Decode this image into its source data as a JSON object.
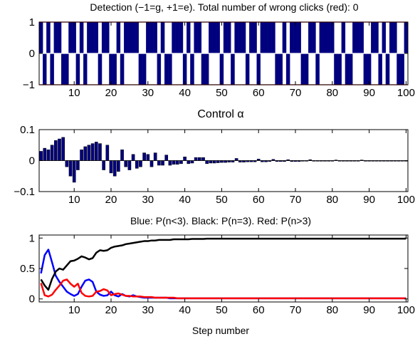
{
  "chart_data": [
    {
      "type": "bar",
      "title": "Detection (−1=g, +1=e). Total number of wrong clicks (red): 0",
      "xlabel": "Control α",
      "ylabel": "",
      "xlim": [
        0.5,
        100.5
      ],
      "ylim": [
        -1,
        1
      ],
      "xticks": [
        "10",
        "20",
        "30",
        "40",
        "50",
        "60",
        "70",
        "80",
        "90",
        "100"
      ],
      "yticks": [
        "−1",
        "0",
        "1"
      ],
      "wrong_click_line_color": "#e00000",
      "bar_color": "#00007f",
      "x": [
        1,
        2,
        3,
        4,
        5,
        6,
        7,
        8,
        9,
        10,
        11,
        12,
        13,
        14,
        15,
        16,
        17,
        18,
        19,
        20,
        21,
        22,
        23,
        24,
        25,
        26,
        27,
        28,
        29,
        30,
        31,
        32,
        33,
        34,
        35,
        36,
        37,
        38,
        39,
        40,
        41,
        42,
        43,
        44,
        45,
        46,
        47,
        48,
        49,
        50,
        51,
        52,
        53,
        54,
        55,
        56,
        57,
        58,
        59,
        60,
        61,
        62,
        63,
        64,
        65,
        66,
        67,
        68,
        69,
        70,
        71,
        72,
        73,
        74,
        75,
        76,
        77,
        78,
        79,
        80,
        81,
        82,
        83,
        84,
        85,
        86,
        87,
        88,
        89,
        90,
        91,
        92,
        93,
        94,
        95,
        96,
        97,
        98,
        99,
        100
      ],
      "values": [
        1,
        -1,
        1,
        -1,
        1,
        1,
        -1,
        -1,
        1,
        1,
        -1,
        1,
        -1,
        1,
        1,
        1,
        -1,
        1,
        1,
        -1,
        -1,
        1,
        -1,
        1,
        1,
        1,
        1,
        -1,
        -1,
        1,
        1,
        1,
        -1,
        1,
        -1,
        -1,
        1,
        1,
        1,
        -1,
        1,
        -1,
        1,
        1,
        -1,
        -1,
        1,
        1,
        1,
        -1,
        1,
        1,
        -1,
        1,
        1,
        1,
        -1,
        1,
        1,
        -1,
        1,
        1,
        1,
        1,
        -1,
        -1,
        1,
        -1,
        1,
        1,
        1,
        -1,
        -1,
        1,
        1,
        -1,
        1,
        1,
        1,
        1,
        -1,
        -1,
        1,
        -1,
        -1,
        1,
        1,
        1,
        -1,
        -1,
        1,
        1,
        -1,
        1,
        -1,
        1,
        1,
        -1,
        -1,
        1
      ]
    },
    {
      "type": "bar",
      "title": "",
      "xlabel": "",
      "ylabel": "",
      "xlim": [
        0.5,
        100.5
      ],
      "ylim": [
        -0.1,
        0.1
      ],
      "xticks": [
        "10",
        "20",
        "30",
        "40",
        "50",
        "60",
        "70",
        "80",
        "90",
        "100"
      ],
      "yticks": [
        "−0.1",
        "0",
        "0.1"
      ],
      "bar_color": "#00007f",
      "x": [
        1,
        2,
        3,
        4,
        5,
        6,
        7,
        8,
        9,
        10,
        11,
        12,
        13,
        14,
        15,
        16,
        17,
        18,
        19,
        20,
        21,
        22,
        23,
        24,
        25,
        26,
        27,
        28,
        29,
        30,
        31,
        32,
        33,
        34,
        35,
        36,
        37,
        38,
        39,
        40,
        41,
        42,
        43,
        44,
        45,
        46,
        47,
        48,
        49,
        50,
        51,
        52,
        53,
        54,
        55,
        56,
        57,
        58,
        59,
        60,
        61,
        62,
        63,
        64,
        65,
        66,
        67,
        68,
        69,
        70,
        71,
        72,
        73,
        74,
        75,
        76,
        77,
        78,
        79,
        80,
        81,
        82,
        83,
        84,
        85,
        86,
        87,
        88,
        89,
        90,
        91,
        92,
        93,
        94,
        95,
        96,
        97,
        98,
        99,
        100
      ],
      "values": [
        0.03,
        0.04,
        0.035,
        0.05,
        0.065,
        0.07,
        0.075,
        -0.02,
        -0.05,
        -0.07,
        -0.03,
        0.035,
        0.045,
        0.05,
        0.055,
        0.06,
        0.055,
        -0.03,
        0.05,
        -0.04,
        -0.05,
        -0.035,
        0.035,
        -0.02,
        -0.03,
        0.02,
        -0.025,
        -0.02,
        0.025,
        0.02,
        -0.02,
        0.025,
        -0.015,
        -0.015,
        0.018,
        -0.015,
        -0.012,
        -0.012,
        -0.01,
        0.012,
        -0.01,
        -0.008,
        0.01,
        0.01,
        0.01,
        -0.01,
        -0.008,
        -0.008,
        -0.007,
        -0.006,
        -0.006,
        -0.005,
        -0.005,
        0.007,
        -0.005,
        -0.005,
        -0.004,
        -0.004,
        -0.004,
        0.005,
        -0.004,
        -0.004,
        -0.003,
        0.004,
        -0.003,
        -0.003,
        -0.003,
        0.003,
        -0.003,
        -0.003,
        -0.003,
        -0.002,
        -0.002,
        0.003,
        -0.002,
        -0.002,
        -0.002,
        -0.002,
        -0.002,
        -0.002,
        0.002,
        -0.002,
        -0.002,
        -0.002,
        -0.002,
        -0.002,
        -0.002,
        0.002,
        -0.002,
        -0.002,
        -0.002,
        -0.002,
        -0.002,
        -0.002,
        -0.002,
        -0.002,
        -0.002,
        -0.002,
        -0.002,
        -0.002
      ]
    },
    {
      "type": "line",
      "title": "Blue: P(n<3).   Black: P(n=3).   Red: P(n>3)",
      "xlabel": "Step number",
      "ylabel": "",
      "xlim": [
        0.5,
        100.5
      ],
      "ylim": [
        -0.05,
        1.05
      ],
      "xticks": [
        "10",
        "20",
        "30",
        "40",
        "50",
        "60",
        "70",
        "80",
        "90",
        "100"
      ],
      "yticks": [
        "0",
        "0.5",
        "1"
      ],
      "x": [
        1,
        2,
        3,
        4,
        5,
        6,
        7,
        8,
        9,
        10,
        11,
        12,
        13,
        14,
        15,
        16,
        17,
        18,
        19,
        20,
        21,
        22,
        23,
        24,
        25,
        26,
        27,
        28,
        29,
        30,
        31,
        32,
        33,
        34,
        35,
        36,
        37,
        38,
        39,
        40,
        41,
        42,
        43,
        44,
        45,
        46,
        47,
        48,
        49,
        50,
        51,
        52,
        53,
        54,
        55,
        56,
        57,
        58,
        59,
        60,
        61,
        62,
        63,
        64,
        65,
        66,
        67,
        68,
        69,
        70,
        71,
        72,
        73,
        74,
        75,
        76,
        77,
        78,
        79,
        80,
        81,
        82,
        83,
        84,
        85,
        86,
        87,
        88,
        89,
        90,
        91,
        92,
        93,
        94,
        95,
        96,
        97,
        98,
        99,
        100
      ],
      "series": [
        {
          "color": "#0000ff",
          "values": [
            0.42,
            0.72,
            0.81,
            0.6,
            0.38,
            0.28,
            0.2,
            0.12,
            0.08,
            0.05,
            0.08,
            0.2,
            0.3,
            0.32,
            0.28,
            0.12,
            0.07,
            0.05,
            0.06,
            0.12,
            0.06,
            0.04,
            0.08,
            0.05,
            0.04,
            0.06,
            0.04,
            0.03,
            0.02,
            0.02,
            0.02,
            0.02,
            0.02,
            0.02,
            0.02,
            0.01,
            0.01,
            0.01,
            0.01,
            0.01,
            0.01,
            0.01,
            0.01,
            0.01,
            0.01,
            0.01,
            0.01,
            0.01,
            0.01,
            0.01,
            0.01,
            0.01,
            0.01,
            0.01,
            0.01,
            0.01,
            0.01,
            0.01,
            0.01,
            0.01,
            0.01,
            0.01,
            0.01,
            0.01,
            0.01,
            0.01,
            0.01,
            0.01,
            0.01,
            0.01,
            0.01,
            0.01,
            0.01,
            0.01,
            0.01,
            0.01,
            0.01,
            0.01,
            0.01,
            0.01,
            0.01,
            0.01,
            0.01,
            0.01,
            0.01,
            0.01,
            0.01,
            0.01,
            0.01,
            0.01,
            0.01,
            0.01,
            0.01,
            0.01,
            0.01,
            0.01,
            0.01,
            0.01,
            0.01,
            0.01
          ]
        },
        {
          "color": "#000000",
          "values": [
            0.32,
            0.22,
            0.15,
            0.33,
            0.45,
            0.5,
            0.48,
            0.55,
            0.62,
            0.63,
            0.66,
            0.7,
            0.68,
            0.65,
            0.67,
            0.76,
            0.8,
            0.79,
            0.8,
            0.84,
            0.86,
            0.87,
            0.88,
            0.9,
            0.91,
            0.92,
            0.93,
            0.94,
            0.95,
            0.95,
            0.96,
            0.96,
            0.97,
            0.97,
            0.97,
            0.97,
            0.98,
            0.98,
            0.98,
            0.98,
            0.98,
            0.985,
            0.985,
            0.985,
            0.985,
            0.99,
            0.99,
            0.99,
            0.99,
            0.99,
            0.99,
            0.99,
            0.99,
            0.99,
            0.99,
            0.99,
            0.99,
            0.99,
            0.99,
            0.99,
            0.99,
            0.99,
            0.99,
            0.99,
            0.99,
            0.99,
            0.99,
            0.99,
            0.99,
            0.99,
            0.99,
            0.99,
            0.99,
            0.99,
            0.99,
            0.99,
            0.99,
            0.99,
            0.99,
            0.99,
            0.99,
            0.99,
            0.99,
            0.99,
            0.99,
            0.99,
            0.99,
            0.99,
            0.99,
            0.99,
            0.99,
            0.99,
            0.99,
            0.99,
            0.99,
            0.99,
            0.99,
            0.99,
            0.99,
            0.99
          ]
        },
        {
          "color": "#ff0000",
          "values": [
            0.26,
            0.06,
            0.04,
            0.07,
            0.15,
            0.22,
            0.3,
            0.32,
            0.25,
            0.2,
            0.25,
            0.1,
            0.05,
            0.04,
            0.05,
            0.12,
            0.13,
            0.16,
            0.14,
            0.06,
            0.08,
            0.09,
            0.07,
            0.05,
            0.05,
            0.04,
            0.04,
            0.04,
            0.03,
            0.03,
            0.03,
            0.02,
            0.02,
            0.02,
            0.02,
            0.02,
            0.02,
            0.01,
            0.01,
            0.01,
            0.01,
            0.01,
            0.01,
            0.01,
            0.01,
            0.01,
            0.01,
            0.01,
            0.01,
            0.01,
            0.01,
            0.01,
            0.01,
            0.01,
            0.01,
            0.01,
            0.01,
            0.01,
            0.01,
            0.01,
            0.01,
            0.01,
            0.01,
            0.01,
            0.01,
            0.01,
            0.01,
            0.01,
            0.01,
            0.01,
            0.01,
            0.01,
            0.01,
            0.01,
            0.01,
            0.01,
            0.01,
            0.01,
            0.01,
            0.01,
            0.01,
            0.01,
            0.01,
            0.01,
            0.01,
            0.01,
            0.01,
            0.01,
            0.01,
            0.01,
            0.01,
            0.01,
            0.01,
            0.01,
            0.01,
            0.01,
            0.01,
            0.01,
            0.01,
            0.01
          ]
        }
      ]
    }
  ]
}
